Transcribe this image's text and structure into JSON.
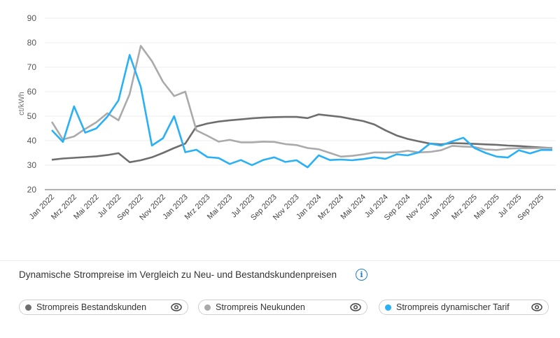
{
  "chart_data": {
    "type": "line",
    "ylabel": "ct/kWh",
    "ylim": [
      20,
      90
    ],
    "yticks": [
      20,
      30,
      40,
      50,
      60,
      70,
      80,
      90
    ],
    "grid": true,
    "x": [
      "Jan 2022",
      "Feb 2022",
      "Mrz 2022",
      "Apr 2022",
      "Mai 2022",
      "Jun 2022",
      "Jul 2022",
      "Aug 2022",
      "Sep 2022",
      "Okt 2022",
      "Nov 2022",
      "Dez 2022",
      "Jan 2023",
      "Feb 2023",
      "Mrz 2023",
      "Apr 2023",
      "Mai 2023",
      "Jun 2023",
      "Jul 2023",
      "Aug 2023",
      "Sep 2023",
      "Okt 2023",
      "Nov 2023",
      "Dez 2023",
      "Jan 2024",
      "Feb 2024",
      "Mrz 2024",
      "Apr 2024",
      "Mai 2024",
      "Jun 2024",
      "Jul 2024",
      "Aug 2024",
      "Sep 2024",
      "Okt 2024",
      "Nov 2024",
      "Dez 2024",
      "Jan 2025",
      "Feb 2025",
      "Mrz 2025",
      "Apr 2025",
      "Mai 2025",
      "Jun 2025",
      "Jul 2025",
      "Aug 2025",
      "Sep 2025",
      "Okt 2025"
    ],
    "xtick_labels": [
      "Jan 2022",
      "Mrz 2022",
      "Mai 2022",
      "Jul 2022",
      "Sep 2022",
      "Nov 2022",
      "Jan 2023",
      "Mrz 2023",
      "Mai 2023",
      "Jul 2023",
      "Sep 2023",
      "Nov 2023",
      "Jan 2024",
      "Mrz 2024",
      "Mai 2024",
      "Jul 2024",
      "Sep 2024",
      "Nov 2024",
      "Jan 2025",
      "Mrz 2025",
      "Mai 2025",
      "Jul 2025",
      "Sep 2025"
    ],
    "series": [
      {
        "name": "Strompreis Bestandskunden",
        "color": "#6e6e6e",
        "values": [
          32.2,
          32.7,
          33.0,
          33.3,
          33.6,
          34.1,
          34.9,
          31.2,
          32.0,
          33.2,
          35.0,
          37.0,
          38.8,
          45.8,
          47.0,
          47.8,
          48.3,
          48.7,
          49.1,
          49.4,
          49.6,
          49.7,
          49.7,
          49.2,
          50.7,
          50.2,
          49.7,
          48.8,
          48.0,
          46.6,
          44.2,
          42.1,
          40.7,
          39.7,
          38.8,
          38.5,
          39.0,
          38.9,
          38.7,
          38.5,
          38.3,
          38.0,
          37.8,
          37.5,
          37.2,
          37.0
        ]
      },
      {
        "name": "Strompreis Neukunden",
        "color": "#aaaaaa",
        "values": [
          47.7,
          40.5,
          41.7,
          44.8,
          47.5,
          51.2,
          48.3,
          59.0,
          78.7,
          72.5,
          64.0,
          58.2,
          60.0,
          44.2,
          42.0,
          39.6,
          40.3,
          39.3,
          39.3,
          39.6,
          39.5,
          38.6,
          38.2,
          37.0,
          36.5,
          35.0,
          33.5,
          33.8,
          34.4,
          35.2,
          35.2,
          35.2,
          35.9,
          35.2,
          35.4,
          36.1,
          37.9,
          37.6,
          37.4,
          36.4,
          36.2,
          36.7,
          36.9,
          36.9,
          37.0,
          37.0
        ]
      },
      {
        "name": "Strompreis dynamischer Tarif",
        "color": "#2ab0f5",
        "values": [
          44.3,
          39.5,
          54.0,
          43.3,
          45.0,
          49.8,
          56.5,
          75.0,
          62.0,
          38.0,
          41.0,
          50.0,
          35.3,
          36.3,
          33.3,
          32.9,
          30.5,
          32.1,
          30.0,
          32.1,
          33.2,
          31.3,
          32.0,
          29.1,
          34.0,
          32.1,
          32.3,
          32.0,
          32.5,
          33.2,
          32.6,
          34.4,
          34.0,
          35.2,
          38.8,
          38.0,
          39.7,
          41.2,
          37.0,
          35.0,
          33.5,
          33.1,
          36.1,
          34.8,
          36.2,
          36.2
        ]
      }
    ]
  },
  "section": {
    "title": "Dynamische Strompreise im Vergleich zu Neu- und Bestandskundenpreisen",
    "info_icon": "info-icon"
  },
  "legend": [
    {
      "label": "Strompreis Bestandskunden",
      "color": "#6e6e6e",
      "icon": "eye-icon"
    },
    {
      "label": "Strompreis Neukunden",
      "color": "#aaaaaa",
      "icon": "eye-icon"
    },
    {
      "label": "Strompreis dynamischer Tarif",
      "color": "#2ab0f5",
      "icon": "eye-icon"
    }
  ]
}
